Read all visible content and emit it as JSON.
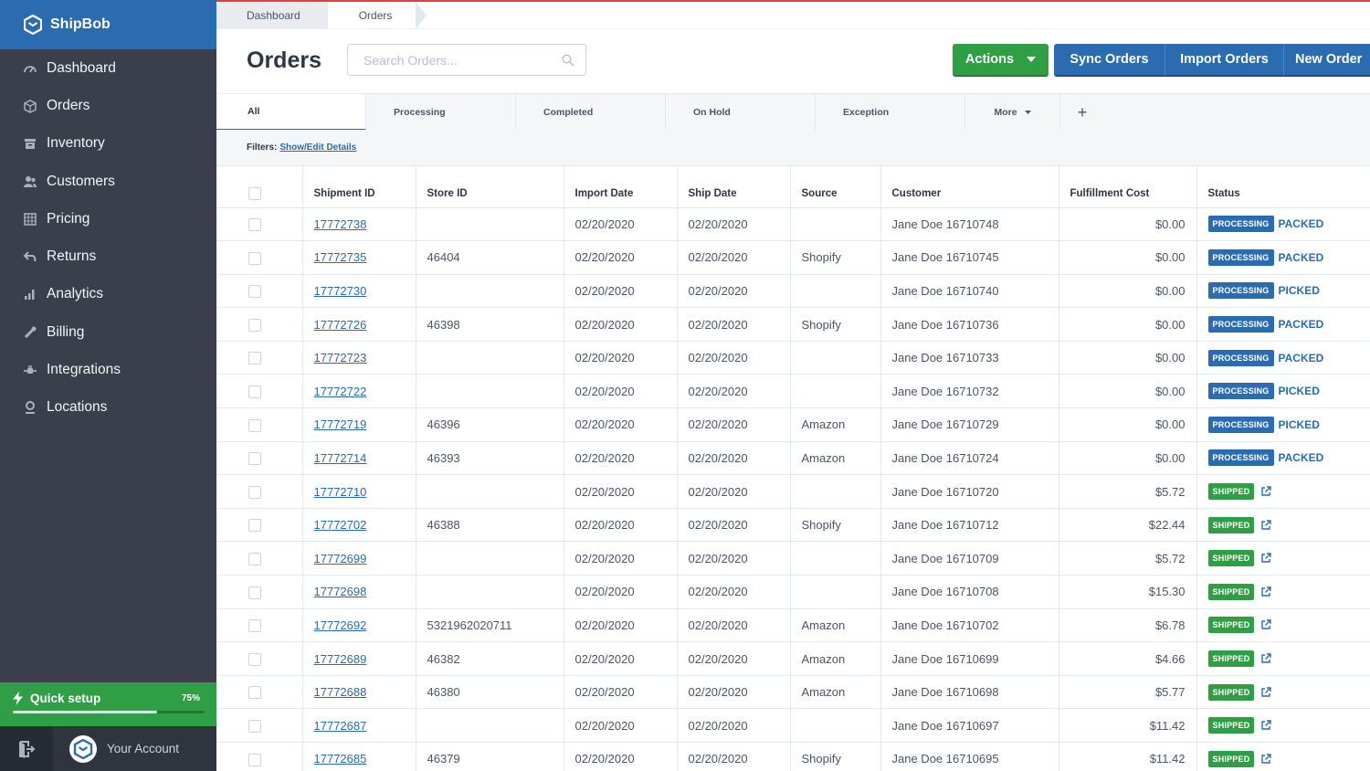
{
  "brand": {
    "name": "ShipBob",
    "color": "#2b6cb0"
  },
  "sidebar": {
    "items": [
      {
        "label": "Dashboard",
        "icon": "dashboard-icon"
      },
      {
        "label": "Orders",
        "icon": "orders-icon"
      },
      {
        "label": "Inventory",
        "icon": "inventory-icon"
      },
      {
        "label": "Customers",
        "icon": "customers-icon"
      },
      {
        "label": "Pricing",
        "icon": "pricing-icon"
      },
      {
        "label": "Returns",
        "icon": "returns-icon"
      },
      {
        "label": "Analytics",
        "icon": "analytics-icon"
      },
      {
        "label": "Billing",
        "icon": "billing-icon"
      },
      {
        "label": "Integrations",
        "icon": "integrations-icon"
      },
      {
        "label": "Locations",
        "icon": "locations-icon"
      }
    ],
    "quick_setup": {
      "label": "Quick setup",
      "percent_label": "75%",
      "progress": 0.75
    },
    "account": {
      "label": "Your Account"
    }
  },
  "breadcrumb": [
    "Dashboard",
    "Orders"
  ],
  "header": {
    "title": "Orders",
    "search_placeholder": "Search Orders...",
    "actions_label": "Actions",
    "sync_label": "Sync Orders",
    "import_label": "Import Orders",
    "new_label": "New Order"
  },
  "tabs": [
    "All",
    "Processing",
    "Completed",
    "On Hold",
    "Exception"
  ],
  "tab_more": "More",
  "tab_add": "+",
  "filters": {
    "label": "Filters:",
    "link": "Show/Edit Details"
  },
  "table": {
    "columns": [
      "Shipment ID",
      "Store ID",
      "Import Date",
      "Ship Date",
      "Source",
      "Customer",
      "Fulfillment Cost",
      "Status"
    ],
    "rows": [
      {
        "id": "17772738",
        "store": "",
        "import": "02/20/2020",
        "ship": "02/20/2020",
        "source": "",
        "customer": "Jane Doe 16710748",
        "cost": "$0.00",
        "status": "PROCESSING",
        "sub": "PACKED"
      },
      {
        "id": "17772735",
        "store": "46404",
        "import": "02/20/2020",
        "ship": "02/20/2020",
        "source": "Shopify",
        "customer": "Jane Doe 16710745",
        "cost": "$0.00",
        "status": "PROCESSING",
        "sub": "PACKED"
      },
      {
        "id": "17772730",
        "store": "",
        "import": "02/20/2020",
        "ship": "02/20/2020",
        "source": "",
        "customer": "Jane Doe 16710740",
        "cost": "$0.00",
        "status": "PROCESSING",
        "sub": "PICKED"
      },
      {
        "id": "17772726",
        "store": "46398",
        "import": "02/20/2020",
        "ship": "02/20/2020",
        "source": "Shopify",
        "customer": "Jane Doe 16710736",
        "cost": "$0.00",
        "status": "PROCESSING",
        "sub": "PACKED"
      },
      {
        "id": "17772723",
        "store": "",
        "import": "02/20/2020",
        "ship": "02/20/2020",
        "source": "",
        "customer": "Jane Doe 16710733",
        "cost": "$0.00",
        "status": "PROCESSING",
        "sub": "PACKED"
      },
      {
        "id": "17772722",
        "store": "",
        "import": "02/20/2020",
        "ship": "02/20/2020",
        "source": "",
        "customer": "Jane Doe 16710732",
        "cost": "$0.00",
        "status": "PROCESSING",
        "sub": "PICKED"
      },
      {
        "id": "17772719",
        "store": "46396",
        "import": "02/20/2020",
        "ship": "02/20/2020",
        "source": "Amazon",
        "customer": "Jane Doe 16710729",
        "cost": "$0.00",
        "status": "PROCESSING",
        "sub": "PICKED"
      },
      {
        "id": "17772714",
        "store": "46393",
        "import": "02/20/2020",
        "ship": "02/20/2020",
        "source": "Amazon",
        "customer": "Jane Doe 16710724",
        "cost": "$0.00",
        "status": "PROCESSING",
        "sub": "PACKED"
      },
      {
        "id": "17772710",
        "store": "",
        "import": "02/20/2020",
        "ship": "02/20/2020",
        "source": "",
        "customer": "Jane Doe 16710720",
        "cost": "$5.72",
        "status": "SHIPPED",
        "sub": ""
      },
      {
        "id": "17772702",
        "store": "46388",
        "import": "02/20/2020",
        "ship": "02/20/2020",
        "source": "Shopify",
        "customer": "Jane Doe 16710712",
        "cost": "$22.44",
        "status": "SHIPPED",
        "sub": ""
      },
      {
        "id": "17772699",
        "store": "",
        "import": "02/20/2020",
        "ship": "02/20/2020",
        "source": "",
        "customer": "Jane Doe 16710709",
        "cost": "$5.72",
        "status": "SHIPPED",
        "sub": ""
      },
      {
        "id": "17772698",
        "store": "",
        "import": "02/20/2020",
        "ship": "02/20/2020",
        "source": "",
        "customer": "Jane Doe 16710708",
        "cost": "$15.30",
        "status": "SHIPPED",
        "sub": ""
      },
      {
        "id": "17772692",
        "store": "5321962020711",
        "import": "02/20/2020",
        "ship": "02/20/2020",
        "source": "Amazon",
        "customer": "Jane Doe 16710702",
        "cost": "$6.78",
        "status": "SHIPPED",
        "sub": ""
      },
      {
        "id": "17772689",
        "store": "46382",
        "import": "02/20/2020",
        "ship": "02/20/2020",
        "source": "Amazon",
        "customer": "Jane Doe 16710699",
        "cost": "$4.66",
        "status": "SHIPPED",
        "sub": ""
      },
      {
        "id": "17772688",
        "store": "46380",
        "import": "02/20/2020",
        "ship": "02/20/2020",
        "source": "Amazon",
        "customer": "Jane Doe 16710698",
        "cost": "$5.77",
        "status": "SHIPPED",
        "sub": ""
      },
      {
        "id": "17772687",
        "store": "",
        "import": "02/20/2020",
        "ship": "02/20/2020",
        "source": "",
        "customer": "Jane Doe 16710697",
        "cost": "$11.42",
        "status": "SHIPPED",
        "sub": ""
      },
      {
        "id": "17772685",
        "store": "46379",
        "import": "02/20/2020",
        "ship": "02/20/2020",
        "source": "Shopify",
        "customer": "Jane Doe 16710695",
        "cost": "$11.42",
        "status": "SHIPPED",
        "sub": ""
      }
    ]
  }
}
